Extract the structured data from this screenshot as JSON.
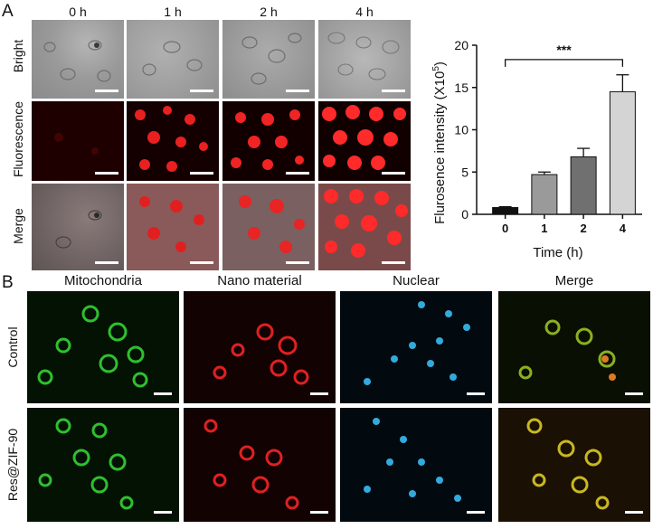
{
  "panel_a": {
    "letter": "A",
    "columns": [
      "0 h",
      "1 h",
      "2 h",
      "4 h"
    ],
    "rows": [
      "Bright",
      "Fluorescence",
      "Merge"
    ]
  },
  "panel_b": {
    "letter": "B",
    "columns": [
      "Mitochondria",
      "Nano material",
      "Nuclear",
      "Merge"
    ],
    "rows": [
      "Control",
      "Res@ZIF-90"
    ]
  },
  "colors": {
    "bright_bg": "#9a9a9a",
    "fluor_bg": "#160000",
    "fluor_cell": "#ff2a2a",
    "merge_bg": "#6a5555",
    "mito": "#2fbf2f",
    "nano": "#e02020",
    "nuclear": "#33aadd",
    "merge_b": "#c8b820",
    "bar_0": "#111111",
    "bar_1": "#9a9a9a",
    "bar_2": "#707070",
    "bar_4": "#d4d4d4"
  },
  "chart_data": {
    "type": "bar",
    "categories": [
      "0",
      "1",
      "2",
      "4"
    ],
    "values": [
      0.8,
      4.7,
      6.8,
      14.5
    ],
    "errors": [
      0.1,
      0.3,
      1.0,
      2.0
    ],
    "xlabel": "Time (h)",
    "ylabel_main": "Flurosence intensity (X10",
    "ylabel_sup": "5",
    "ylabel_end": ")",
    "ylim": [
      0,
      20
    ],
    "yticks": [
      "0",
      "5",
      "10",
      "15",
      "20"
    ],
    "significance": "***",
    "grid": false
  }
}
